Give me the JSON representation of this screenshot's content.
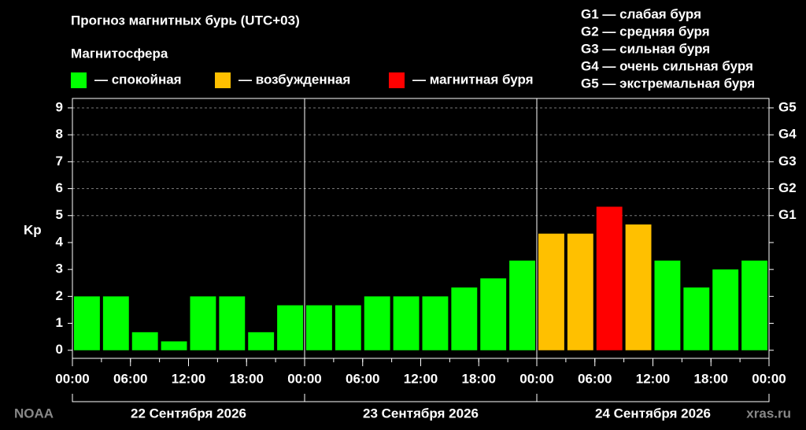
{
  "chart_data": {
    "type": "bar",
    "title": "Прогноз магнитных бурь (UTC+03)",
    "legend_title": "Магнитосфера",
    "legend": [
      {
        "label": "— спокойная",
        "color": "#00ff00"
      },
      {
        "label": "— возбужденная",
        "color": "#ffc000"
      },
      {
        "label": "— магнитная буря",
        "color": "#ff0000"
      }
    ],
    "storm_legend": [
      "G1 — слабая буря",
      "G2 — средняя буря",
      "G3 — сильная буря",
      "G4 — очень сильная буря",
      "G5 — экстремальная буря"
    ],
    "ylabel": "Kp",
    "x": [
      1.5,
      4.5,
      7.5,
      10.5,
      13.5,
      16.5,
      19.5,
      22.5,
      25.5,
      28.5,
      31.5,
      34.5,
      37.5,
      40.5,
      43.5,
      46.5,
      49.5,
      52.5,
      55.5,
      58.5,
      61.5,
      64.5,
      67.5,
      70.5
    ],
    "values": [
      2,
      2,
      0.67,
      0.33,
      2,
      2,
      0.67,
      1.67,
      1.67,
      1.67,
      2,
      2,
      2,
      2.33,
      2.67,
      3.33,
      4.33,
      4.33,
      5.33,
      4.67,
      3.33,
      2.33,
      3,
      3.33
    ],
    "colors": [
      "#00ff00",
      "#00ff00",
      "#00ff00",
      "#00ff00",
      "#00ff00",
      "#00ff00",
      "#00ff00",
      "#00ff00",
      "#00ff00",
      "#00ff00",
      "#00ff00",
      "#00ff00",
      "#00ff00",
      "#00ff00",
      "#00ff00",
      "#00ff00",
      "#ffc000",
      "#ffc000",
      "#ff0000",
      "#ffc000",
      "#00ff00",
      "#00ff00",
      "#00ff00",
      "#00ff00"
    ],
    "xlim": [
      0,
      72
    ],
    "xticks": [
      {
        "value": 0,
        "label": "00:00"
      },
      {
        "value": 6,
        "label": "06:00"
      },
      {
        "value": 12,
        "label": "12:00"
      },
      {
        "value": 18,
        "label": "18:00"
      },
      {
        "value": 24,
        "label": "00:00"
      },
      {
        "value": 30,
        "label": "06:00"
      },
      {
        "value": 36,
        "label": "12:00"
      },
      {
        "value": 42,
        "label": "18:00"
      },
      {
        "value": 48,
        "label": "00:00"
      },
      {
        "value": 54,
        "label": "06:00"
      },
      {
        "value": 60,
        "label": "12:00"
      },
      {
        "value": 66,
        "label": "18:00"
      },
      {
        "value": 72,
        "label": "00:00"
      }
    ],
    "days": [
      {
        "start": 0,
        "end": 24,
        "label": "22 Сентября 2026"
      },
      {
        "start": 24,
        "end": 48,
        "label": "23 Сентября 2026"
      },
      {
        "start": 48,
        "end": 72,
        "label": "24 Сентября 2026"
      }
    ],
    "ylim": [
      -0.3,
      9.35
    ],
    "yticks": [
      0,
      1,
      2,
      3,
      4,
      5,
      6,
      7,
      8,
      9
    ],
    "y2lim": [
      -0.3,
      9.35
    ],
    "y2ticks": [
      {
        "value": 5,
        "label": "G1"
      },
      {
        "value": 6,
        "label": "G2"
      },
      {
        "value": 7,
        "label": "G3"
      },
      {
        "value": 8,
        "label": "G4"
      },
      {
        "value": 9,
        "label": "G5"
      }
    ],
    "grid": true,
    "source": "NOAA",
    "site": "xras.ru"
  }
}
